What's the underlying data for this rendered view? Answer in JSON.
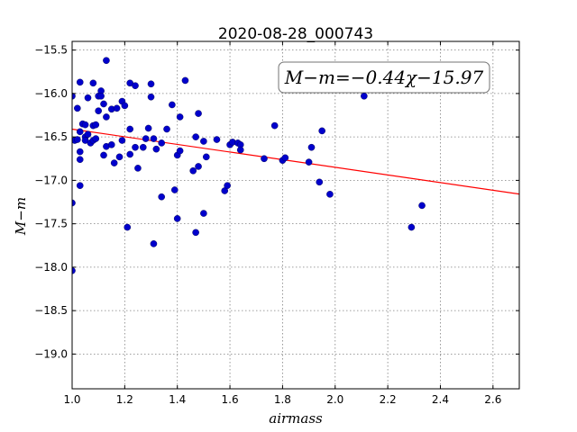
{
  "chart_data": {
    "type": "scatter",
    "title": "2020-08-28_000743",
    "xlabel": "airmass",
    "ylabel": "M−m",
    "xlim": [
      1.0,
      2.7
    ],
    "ylim": [
      -19.4,
      -15.4
    ],
    "y_inverted": true,
    "grid": true,
    "x_ticks": [
      "1.0",
      "1.2",
      "1.4",
      "1.6",
      "1.8",
      "2.0",
      "2.2",
      "2.4",
      "2.6"
    ],
    "y_ticks": [
      "−15.5",
      "−16.0",
      "−16.5",
      "−17.0",
      "−17.5",
      "−18.0",
      "−18.5",
      "−19.0"
    ],
    "annotation": "M−m=−0.44χ−15.97",
    "annotation_position": "top-right",
    "marker_color": "#0000cc",
    "line_color": "#ff0000",
    "fit": {
      "slope": -0.44,
      "intercept": -15.97
    },
    "points": [
      [
        1.0,
        -16.03
      ],
      [
        1.0,
        -17.26
      ],
      [
        1.0,
        -18.04
      ],
      [
        1.01,
        -16.54
      ],
      [
        1.02,
        -16.17
      ],
      [
        1.02,
        -16.53
      ],
      [
        1.03,
        -15.87
      ],
      [
        1.03,
        -16.44
      ],
      [
        1.03,
        -16.67
      ],
      [
        1.03,
        -16.76
      ],
      [
        1.03,
        -17.06
      ],
      [
        1.04,
        -16.35
      ],
      [
        1.05,
        -16.36
      ],
      [
        1.05,
        -16.5
      ],
      [
        1.05,
        -16.54
      ],
      [
        1.06,
        -16.05
      ],
      [
        1.06,
        -16.47
      ],
      [
        1.07,
        -16.57
      ],
      [
        1.08,
        -15.88
      ],
      [
        1.08,
        -16.37
      ],
      [
        1.08,
        -16.54
      ],
      [
        1.09,
        -16.36
      ],
      [
        1.09,
        -16.52
      ],
      [
        1.1,
        -16.03
      ],
      [
        1.1,
        -16.2
      ],
      [
        1.11,
        -15.97
      ],
      [
        1.11,
        -16.03
      ],
      [
        1.12,
        -16.12
      ],
      [
        1.12,
        -16.71
      ],
      [
        1.13,
        -15.62
      ],
      [
        1.13,
        -16.27
      ],
      [
        1.13,
        -16.61
      ],
      [
        1.15,
        -16.18
      ],
      [
        1.15,
        -16.59
      ],
      [
        1.16,
        -16.8
      ],
      [
        1.17,
        -16.17
      ],
      [
        1.18,
        -16.73
      ],
      [
        1.19,
        -16.09
      ],
      [
        1.19,
        -16.54
      ],
      [
        1.2,
        -16.14
      ],
      [
        1.21,
        -17.54
      ],
      [
        1.22,
        -15.88
      ],
      [
        1.22,
        -16.41
      ],
      [
        1.22,
        -16.7
      ],
      [
        1.24,
        -15.91
      ],
      [
        1.24,
        -16.62
      ],
      [
        1.25,
        -16.86
      ],
      [
        1.27,
        -16.62
      ],
      [
        1.28,
        -16.52
      ],
      [
        1.29,
        -16.4
      ],
      [
        1.3,
        -15.89
      ],
      [
        1.3,
        -16.04
      ],
      [
        1.31,
        -16.52
      ],
      [
        1.31,
        -17.73
      ],
      [
        1.32,
        -16.64
      ],
      [
        1.34,
        -16.57
      ],
      [
        1.34,
        -17.19
      ],
      [
        1.36,
        -16.41
      ],
      [
        1.38,
        -16.13
      ],
      [
        1.39,
        -17.11
      ],
      [
        1.4,
        -16.71
      ],
      [
        1.4,
        -17.44
      ],
      [
        1.41,
        -16.27
      ],
      [
        1.41,
        -16.66
      ],
      [
        1.43,
        -15.85
      ],
      [
        1.46,
        -16.89
      ],
      [
        1.47,
        -16.5
      ],
      [
        1.47,
        -17.6
      ],
      [
        1.48,
        -16.23
      ],
      [
        1.48,
        -16.84
      ],
      [
        1.5,
        -16.55
      ],
      [
        1.5,
        -17.38
      ],
      [
        1.51,
        -16.73
      ],
      [
        1.55,
        -16.53
      ],
      [
        1.58,
        -17.12
      ],
      [
        1.59,
        -17.06
      ],
      [
        1.6,
        -16.59
      ],
      [
        1.61,
        -16.56
      ],
      [
        1.63,
        -16.57
      ],
      [
        1.64,
        -16.59
      ],
      [
        1.64,
        -16.65
      ],
      [
        1.73,
        -16.75
      ],
      [
        1.77,
        -16.37
      ],
      [
        1.8,
        -16.77
      ],
      [
        1.81,
        -16.74
      ],
      [
        1.9,
        -16.79
      ],
      [
        1.91,
        -16.62
      ],
      [
        1.94,
        -17.02
      ],
      [
        1.95,
        -16.43
      ],
      [
        1.98,
        -17.16
      ],
      [
        2.11,
        -16.03
      ],
      [
        2.29,
        -17.54
      ],
      [
        2.33,
        -17.29
      ]
    ]
  }
}
